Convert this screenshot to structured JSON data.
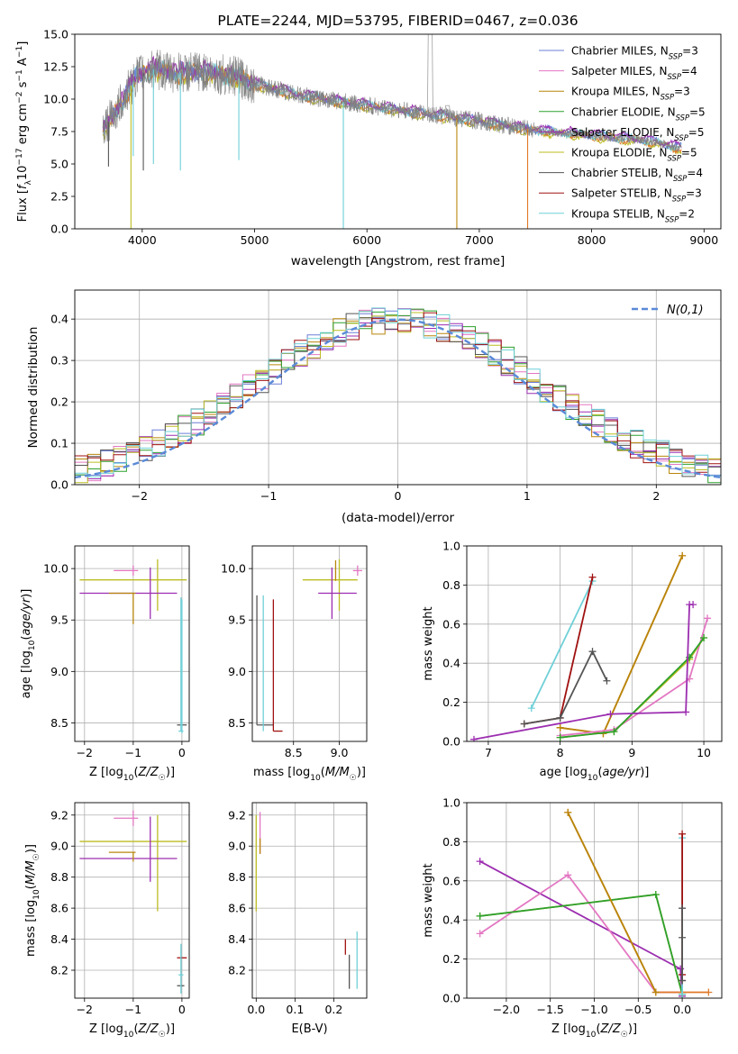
{
  "colors": {
    "chabrier_miles": "#6b7fd7",
    "salpeter_miles": "#e377c2",
    "kroupa_miles": "#b8860b",
    "chabrier_elodie": "#2ca02c",
    "salpeter_elodie": "#9c2db0",
    "kroupa_elodie": "#bcbd22",
    "chabrier_stelib": "#555555",
    "salpeter_stelib": "#a01010",
    "kroupa_stelib": "#6fd0d8",
    "spectrum": "#808080",
    "model_orange": "#e07a2a",
    "gaussian": "#5b8ad8"
  },
  "legend_series": [
    {
      "key": "chabrier_miles",
      "prefix": "Chabrier MILES, N",
      "sub": "SSP",
      "suffix": "=3"
    },
    {
      "key": "salpeter_miles",
      "prefix": "Salpeter MILES, N",
      "sub": "SSP",
      "suffix": "=4"
    },
    {
      "key": "kroupa_miles",
      "prefix": "Kroupa MILES, N",
      "sub": "SSP",
      "suffix": "=3"
    },
    {
      "key": "chabrier_elodie",
      "prefix": "Chabrier ELODIE, N",
      "sub": "SSP",
      "suffix": "=5"
    },
    {
      "key": "salpeter_elodie",
      "prefix": "Salpeter ELODIE, N",
      "sub": "SSP",
      "suffix": "=5"
    },
    {
      "key": "kroupa_elodie",
      "prefix": "Kroupa ELODIE, N",
      "sub": "SSP",
      "suffix": "=5"
    },
    {
      "key": "chabrier_stelib",
      "prefix": "Chabrier STELIB, N",
      "sub": "SSP",
      "suffix": "=4"
    },
    {
      "key": "salpeter_stelib",
      "prefix": "Salpeter STELIB, N",
      "sub": "SSP",
      "suffix": "=3"
    },
    {
      "key": "kroupa_stelib",
      "prefix": "Kroupa STELIB, N",
      "sub": "SSP",
      "suffix": "=2"
    }
  ],
  "chart_data": [
    {
      "id": "spectrum",
      "type": "line",
      "title": "PLATE=2244, MJD=53795, FIBERID=0467, z=0.036",
      "xlabel": "wavelength [Angstrom, rest frame]",
      "ylabel": "Flux [f_λ 10^-17 erg cm^-2 s^-1 A^-1]",
      "xlim": [
        3400,
        9150
      ],
      "ylim": [
        0,
        15
      ],
      "xticks": [
        4000,
        5000,
        6000,
        7000,
        8000,
        9000
      ],
      "yticks": [
        0.0,
        2.5,
        5.0,
        7.5,
        10.0,
        12.5,
        15.0
      ],
      "grid": false,
      "legend": "top-right",
      "continuum": [
        [
          3650,
          7.6
        ],
        [
          3800,
          9.5
        ],
        [
          3950,
          11.8
        ],
        [
          4100,
          12.3
        ],
        [
          4300,
          12.0
        ],
        [
          4500,
          12.1
        ],
        [
          4800,
          11.8
        ],
        [
          5000,
          11.2
        ],
        [
          5400,
          10.3
        ],
        [
          6000,
          9.5
        ],
        [
          6500,
          8.9
        ],
        [
          7000,
          8.3
        ],
        [
          7500,
          7.6
        ],
        [
          8000,
          7.2
        ],
        [
          8500,
          6.8
        ],
        [
          8800,
          6.2
        ]
      ],
      "emission_lines": [
        [
          6563,
          15.0
        ],
        [
          6717,
          8.5
        ]
      ]
    },
    {
      "id": "residual_hist",
      "type": "line",
      "xlabel": "(data-model)/error",
      "ylabel": "Normed distribution",
      "xlim": [
        -2.5,
        2.5
      ],
      "ylim": [
        0,
        0.47
      ],
      "xticks": [
        -2,
        -1,
        0,
        1,
        2
      ],
      "yticks": [
        0.0,
        0.1,
        0.2,
        0.3,
        0.4
      ],
      "grid": true,
      "legend": "top-right",
      "gaussian_label": "N(0,1)",
      "bin_width": 0.1
    },
    {
      "id": "age_vs_z",
      "type": "scatter",
      "xlabel": "Z [log10(Z/Z☉)]",
      "ylabel": "age [log10(age/yr)]",
      "xlim": [
        -2.2,
        0.15
      ],
      "ylim": [
        8.32,
        10.22
      ],
      "xticks": [
        -2,
        -1,
        0
      ],
      "yticks": [
        8.5,
        9.0,
        9.5,
        10.0
      ],
      "grid": true,
      "errorbars": [
        {
          "key": "kroupa_elodie",
          "x": -0.5,
          "y": 9.89,
          "xerr": [
            1.6,
            0.6
          ],
          "yerr": [
            0.3,
            0.2
          ]
        },
        {
          "key": "salpeter_miles",
          "x": -1.0,
          "y": 9.98,
          "xerr": [
            0.4,
            0.1
          ],
          "yerr": [
            0.05,
            0.05
          ]
        },
        {
          "key": "salpeter_elodie",
          "x": -0.65,
          "y": 9.76,
          "xerr": [
            1.45,
            0.55
          ],
          "yerr": [
            0.25,
            0.25
          ]
        },
        {
          "key": "kroupa_miles",
          "x": -1.0,
          "y": 9.76,
          "xerr": [
            0.5,
            0.05
          ],
          "yerr": [
            0.3,
            0.0
          ]
        },
        {
          "key": "chabrier_stelib",
          "x": 0.0,
          "y": 8.48,
          "xerr": [
            0.1,
            0.1
          ],
          "yerr": [
            0.0,
            0.0
          ]
        },
        {
          "key": "kroupa_stelib",
          "x": -0.02,
          "y": 8.42,
          "xerr": [
            0.05,
            0.05
          ],
          "yerr": [
            0.0,
            1.3
          ]
        },
        {
          "key": "kroupa_stelib",
          "x": 0.0,
          "y": 8.7,
          "xerr": [
            0.0,
            0.0
          ],
          "yerr": [
            0.3,
            1.0
          ]
        }
      ]
    },
    {
      "id": "age_vs_mass",
      "type": "scatter",
      "xlabel": "mass [log10(M/M☉)]",
      "xlim": [
        8.05,
        9.3
      ],
      "ylim": [
        8.32,
        10.22
      ],
      "xticks": [
        8.5,
        9.0
      ],
      "yticks": [
        8.5,
        9.0,
        9.5,
        10.0
      ],
      "grid": true,
      "errorbars": [
        {
          "key": "kroupa_elodie",
          "x": 9.0,
          "y": 9.89,
          "xerr": [
            0.4,
            0.2
          ],
          "yerr": [
            0.3,
            0.2
          ]
        },
        {
          "key": "salpeter_miles",
          "x": 9.2,
          "y": 9.98,
          "xerr": [
            0.05,
            0.05
          ],
          "yerr": [
            0.05,
            0.05
          ]
        },
        {
          "key": "salpeter_elodie",
          "x": 8.92,
          "y": 9.76,
          "xerr": [
            0.15,
            0.27
          ],
          "yerr": [
            0.25,
            0.25
          ]
        },
        {
          "key": "kroupa_miles",
          "x": 8.96,
          "y": 9.98,
          "xerr": [
            0.0,
            0.0
          ],
          "yerr": [
            0.1,
            0.1
          ]
        },
        {
          "key": "chabrier_stelib",
          "x": 8.1,
          "y": 8.48,
          "xerr": [
            0.0,
            0.18
          ],
          "yerr": [
            0.0,
            1.26
          ]
        },
        {
          "key": "kroupa_stelib",
          "x": 8.17,
          "y": 8.42,
          "xerr": [
            0.0,
            0.0
          ],
          "yerr": [
            0.0,
            1.32
          ]
        },
        {
          "key": "salpeter_stelib",
          "x": 8.28,
          "y": 8.42,
          "xerr": [
            0.0,
            0.1
          ],
          "yerr": [
            0.0,
            1.28
          ]
        }
      ]
    },
    {
      "id": "massweight_vs_age",
      "type": "line",
      "xlabel": "age [log10(age/yr)]",
      "ylabel": "mass weight",
      "xlim": [
        6.7,
        10.25
      ],
      "ylim": [
        0,
        1.0
      ],
      "xticks": [
        7,
        8,
        9,
        10
      ],
      "yticks": [
        0.0,
        0.2,
        0.4,
        0.6,
        0.8,
        1.0
      ],
      "grid": true,
      "series": [
        {
          "key": "kroupa_stelib",
          "x": [
            7.6,
            8.45
          ],
          "y": [
            0.17,
            0.82
          ]
        },
        {
          "key": "salpeter_stelib",
          "x": [
            7.5,
            8.0,
            8.45
          ],
          "y": [
            0.09,
            0.12,
            0.84
          ]
        },
        {
          "key": "chabrier_stelib",
          "x": [
            7.5,
            8.0,
            8.45,
            8.65
          ],
          "y": [
            0.09,
            0.12,
            0.46,
            0.31
          ]
        },
        {
          "key": "model_orange",
          "x": [
            8.0,
            8.6,
            9.7
          ],
          "y": [
            0.07,
            0.04,
            0.95
          ]
        },
        {
          "key": "kroupa_miles",
          "x": [
            8.0,
            8.6,
            9.7
          ],
          "y": [
            0.07,
            0.04,
            0.95
          ]
        },
        {
          "key": "salpeter_miles",
          "x": [
            8.0,
            8.75,
            9.8,
            10.05
          ],
          "y": [
            0.03,
            0.06,
            0.32,
            0.63
          ]
        },
        {
          "key": "kroupa_elodie",
          "x": [
            8.0,
            8.75,
            9.8,
            10.0
          ],
          "y": [
            0.02,
            0.05,
            0.42,
            0.53
          ]
        },
        {
          "key": "chabrier_elodie",
          "x": [
            8.0,
            8.75,
            9.8,
            10.0
          ],
          "y": [
            0.02,
            0.05,
            0.43,
            0.53
          ]
        },
        {
          "key": "salpeter_elodie",
          "x": [
            6.8,
            8.7,
            9.75,
            9.8,
            9.85
          ],
          "y": [
            0.01,
            0.14,
            0.15,
            0.7,
            0.7
          ]
        }
      ]
    },
    {
      "id": "mass_vs_z",
      "type": "scatter",
      "xlabel": "Z [log10(Z/Z☉)]",
      "ylabel": "mass [log10(M/M☉)]",
      "xlim": [
        -2.2,
        0.15
      ],
      "ylim": [
        8.02,
        9.28
      ],
      "xticks": [
        -2,
        -1,
        0
      ],
      "yticks": [
        8.2,
        8.4,
        8.6,
        8.8,
        9.0,
        9.2
      ],
      "grid": true,
      "errorbars": [
        {
          "key": "kroupa_elodie",
          "x": -0.5,
          "y": 9.03,
          "xerr": [
            1.6,
            0.6
          ],
          "yerr": [
            0.45,
            0.17
          ]
        },
        {
          "key": "salpeter_miles",
          "x": -1.0,
          "y": 9.18,
          "xerr": [
            0.4,
            0.1
          ],
          "yerr": [
            0.05,
            0.05
          ]
        },
        {
          "key": "salpeter_elodie",
          "x": -0.65,
          "y": 8.92,
          "xerr": [
            1.45,
            0.55
          ],
          "yerr": [
            0.15,
            0.27
          ]
        },
        {
          "key": "kroupa_miles",
          "x": -1.0,
          "y": 8.96,
          "xerr": [
            0.5,
            0.05
          ],
          "yerr": [
            0.06,
            0.0
          ]
        },
        {
          "key": "salpeter_stelib",
          "x": 0.0,
          "y": 8.28,
          "xerr": [
            0.1,
            0.1
          ],
          "yerr": [
            0.0,
            0.0
          ]
        },
        {
          "key": "chabrier_stelib",
          "x": 0.0,
          "y": 8.1,
          "xerr": [
            0.1,
            0.05
          ],
          "yerr": [
            0.0,
            0.0
          ]
        },
        {
          "key": "kroupa_stelib",
          "x": -0.02,
          "y": 8.17,
          "xerr": [
            0.05,
            0.05
          ],
          "yerr": [
            0.12,
            0.2
          ]
        }
      ]
    },
    {
      "id": "mass_vs_ebv",
      "type": "scatter",
      "xlabel": "E(B-V)",
      "xlim": [
        -0.01,
        0.285
      ],
      "ylim": [
        8.02,
        9.28
      ],
      "xticks": [
        0.0,
        0.1,
        0.2
      ],
      "yticks": [
        8.2,
        8.4,
        8.6,
        8.8,
        9.0,
        9.2
      ],
      "grid": true,
      "errorbars": [
        {
          "key": "kroupa_elodie",
          "x": 0.0,
          "y": 9.0,
          "xerr": [
            0.0,
            0.0
          ],
          "yerr": [
            0.42,
            0.2
          ]
        },
        {
          "key": "salpeter_miles",
          "x": 0.01,
          "y": 9.1,
          "xerr": [
            0.0,
            0.0
          ],
          "yerr": [
            0.15,
            0.12
          ]
        },
        {
          "key": "kroupa_miles",
          "x": 0.01,
          "y": 9.0,
          "xerr": [
            0.0,
            0.0
          ],
          "yerr": [
            0.05,
            0.05
          ]
        },
        {
          "key": "salpeter_stelib",
          "x": 0.23,
          "y": 8.3,
          "xerr": [
            0.0,
            0.0
          ],
          "yerr": [
            0.0,
            0.1
          ]
        },
        {
          "key": "chabrier_stelib",
          "x": 0.24,
          "y": 8.2,
          "xerr": [
            0.0,
            0.0
          ],
          "yerr": [
            0.12,
            0.1
          ]
        },
        {
          "key": "kroupa_stelib",
          "x": 0.26,
          "y": 8.3,
          "xerr": [
            0.0,
            0.0
          ],
          "yerr": [
            0.22,
            0.15
          ]
        }
      ]
    },
    {
      "id": "massweight_vs_z",
      "type": "line",
      "xlabel": "Z [log10(Z/Z☉)]",
      "ylabel": "mass weight",
      "xlim": [
        -2.45,
        0.45
      ],
      "ylim": [
        0,
        1.0
      ],
      "xticks": [
        -2.0,
        -1.5,
        -1.0,
        -0.5,
        0.0
      ],
      "yticks": [
        0.0,
        0.2,
        0.4,
        0.6,
        0.8,
        1.0
      ],
      "grid": true,
      "series": [
        {
          "key": "salpeter_elodie",
          "x": [
            -2.3,
            -0.02,
            0.0
          ],
          "y": [
            0.7,
            0.15,
            0.01
          ]
        },
        {
          "key": "salpeter_miles",
          "x": [
            -2.3,
            -1.3,
            -0.3,
            0.0
          ],
          "y": [
            0.33,
            0.63,
            0.03,
            0.03
          ]
        },
        {
          "key": "kroupa_elodie",
          "x": [
            -2.3,
            -0.3,
            0.0
          ],
          "y": [
            0.42,
            0.53,
            0.02
          ]
        },
        {
          "key": "chabrier_elodie",
          "x": [
            -2.3,
            -0.3,
            0.0
          ],
          "y": [
            0.42,
            0.53,
            0.02
          ]
        },
        {
          "key": "model_orange",
          "x": [
            -1.3,
            -0.3,
            0.3
          ],
          "y": [
            0.95,
            0.03,
            0.03
          ]
        },
        {
          "key": "kroupa_miles",
          "x": [
            -1.3,
            -0.3
          ],
          "y": [
            0.95,
            0.03
          ]
        },
        {
          "key": "kroupa_stelib",
          "x": [
            0.0,
            0.0
          ],
          "y": [
            0.02,
            0.82
          ]
        },
        {
          "key": "salpeter_stelib",
          "x": [
            0.0,
            0.0,
            0.0
          ],
          "y": [
            0.84,
            0.12,
            0.09
          ]
        },
        {
          "key": "chabrier_stelib",
          "x": [
            0.0,
            0.0,
            0.0
          ],
          "y": [
            0.46,
            0.31,
            0.09
          ]
        }
      ]
    }
  ]
}
